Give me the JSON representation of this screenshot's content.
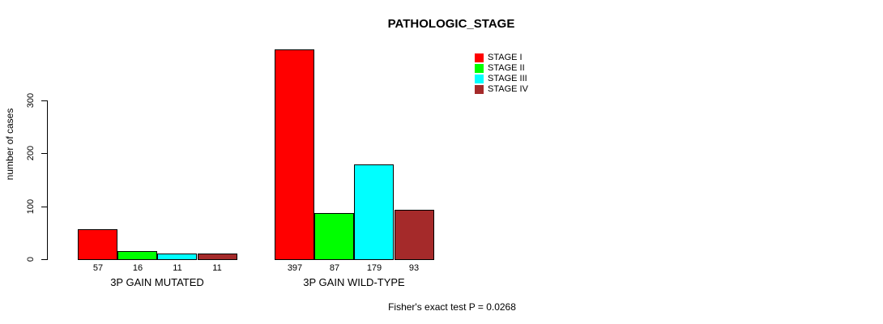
{
  "figure": {
    "title": "PATHOLOGIC_STAGE",
    "footnote": "Fisher's exact test P = 0.0268"
  },
  "chart_data": {
    "type": "bar",
    "title": "PATHOLOGIC_STAGE",
    "xlabel": "",
    "ylabel": "number of cases",
    "categories": [
      "3P GAIN MUTATED",
      "3P GAIN WILD-TYPE"
    ],
    "series": [
      {
        "name": "STAGE I",
        "color": "#FF0000",
        "values": [
          57,
          397
        ]
      },
      {
        "name": "STAGE II",
        "color": "#00FF00",
        "values": [
          16,
          87
        ]
      },
      {
        "name": "STAGE III",
        "color": "#00FFFF",
        "values": [
          11,
          179
        ]
      },
      {
        "name": "STAGE IV",
        "color": "#A52A2A",
        "values": [
          11,
          93
        ]
      }
    ],
    "bar_value_labels": [
      [
        57,
        16,
        11,
        11
      ],
      [
        397,
        87,
        179,
        93
      ]
    ],
    "yticks": [
      0,
      100,
      200,
      300
    ],
    "ylim": [
      0,
      400
    ],
    "grid": false,
    "bar_border_color": "#000000",
    "legend_position": "top-right",
    "annotation": "Fisher's exact test P = 0.0268"
  }
}
